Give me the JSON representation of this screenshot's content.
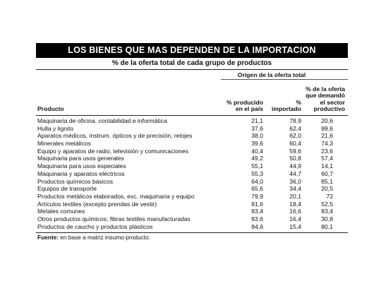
{
  "chart_data": {
    "type": "table",
    "title": "LOS BIENES QUE MAS DEPENDEN DE LA IMPORTACION",
    "subtitle": "% de la oferta total de cada grupo de productos",
    "group_header": "Origen de la oferta total",
    "columns": {
      "product": "Producto",
      "domestic": [
        "% producido",
        "en el país"
      ],
      "imported": [
        "%",
        "importado"
      ],
      "productive_demand": [
        "% de la oferta",
        "que demandó",
        "el sector",
        "productivo"
      ]
    },
    "rows": [
      {
        "product": "Maquinaria de oficina, contabilidad e informática",
        "domestic": "21,1",
        "imported": "78,9",
        "productive_demand": "20,6"
      },
      {
        "product": "Hulla y lignito",
        "domestic": "37,6",
        "imported": "62,4",
        "productive_demand": "99,6"
      },
      {
        "product": "Aparatos médicos, instrum. ópticos y de precisión, relojes",
        "domestic": "38,0",
        "imported": "62,0",
        "productive_demand": "21,6"
      },
      {
        "product": "Minerales metálicos",
        "domestic": "39,6",
        "imported": "60,4",
        "productive_demand": "74,3"
      },
      {
        "product": "Equipo y aparatos de radio, televisión y comunicaciones",
        "domestic": "40,4",
        "imported": "59,6",
        "productive_demand": "23,6"
      },
      {
        "product": "Maquinaria para usos generales",
        "domestic": "49,2",
        "imported": "50,8",
        "productive_demand": "57,4"
      },
      {
        "product": "Maquinaria para usos especiales",
        "domestic": "55,1",
        "imported": "44,9",
        "productive_demand": "14,1"
      },
      {
        "product": "Maquinaria y aparatos eléctricos",
        "domestic": "55,3",
        "imported": "44,7",
        "productive_demand": "60,7"
      },
      {
        "product": "Productos químicos básicos",
        "domestic": "64,0",
        "imported": "36,0",
        "productive_demand": "85,1"
      },
      {
        "product": "Equipos de transporte",
        "domestic": "65,6",
        "imported": "34,4",
        "productive_demand": "20,5"
      },
      {
        "product": "Productos metálicos elaborados, exc. maquinaria y equipo",
        "domestic": "79,9",
        "imported": "20,1",
        "productive_demand": "72"
      },
      {
        "product": "Artículos textiles (excepto prendas de vestir)",
        "domestic": "81,6",
        "imported": "18,4",
        "productive_demand": "52,5"
      },
      {
        "product": "Metales comunes",
        "domestic": "83,4",
        "imported": "16,6",
        "productive_demand": "83,4"
      },
      {
        "product": "Otros productos químicos; fibras textiles manufacturadas",
        "domestic": "83,6",
        "imported": "16,4",
        "productive_demand": "30,8"
      },
      {
        "product": "Productos de caucho y productos plásticos",
        "domestic": "84,6",
        "imported": "15,4",
        "productive_demand": "80,1"
      }
    ],
    "footnote": {
      "label": "Fuente:",
      "text": " en base a matriz insumo-producto."
    }
  }
}
